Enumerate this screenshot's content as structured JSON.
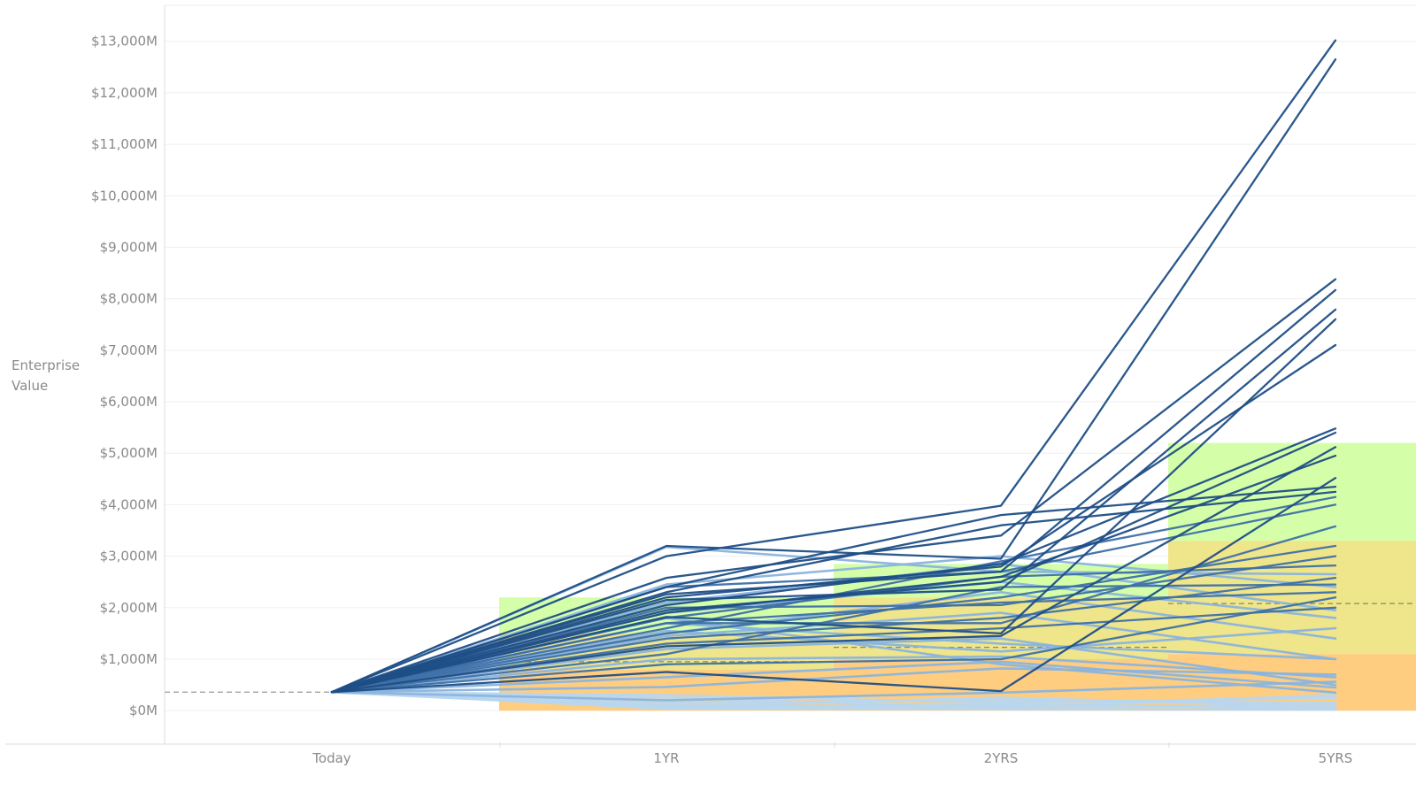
{
  "chart_data": {
    "type": "line",
    "ylabel": "Enterprise Value",
    "y_ticks": [
      "$0M",
      "$1,000M",
      "$2,000M",
      "$3,000M",
      "$4,000M",
      "$5,000M",
      "$6,000M",
      "$7,000M",
      "$8,000M",
      "$9,000M",
      "$10,000M",
      "$11,000M",
      "$12,000M",
      "$13,000M"
    ],
    "ylim": [
      -650,
      13700
    ],
    "categories": [
      "Today",
      "1YR",
      "2YRS",
      "5YRS"
    ],
    "baseline_value": 360,
    "grid": true,
    "colors": {
      "green_band": "#ccff99",
      "yellow_band": "#ece077",
      "orange_band": "#ffc46a",
      "dark_line": "#1f4e86",
      "mid_line": "#3e70a7",
      "light_line": "#8ab4de",
      "pale_line": "#b8d6ef",
      "ref_line": "#9a9a9a"
    },
    "bands": [
      {
        "category": "1YR",
        "green": [
          1500,
          2200
        ],
        "yellow": [
          800,
          1500
        ],
        "orange": [
          0,
          800
        ],
        "reference": 950
      },
      {
        "category": "2YRS",
        "green": [
          2200,
          2850
        ],
        "yellow": [
          1000,
          2200
        ],
        "orange": [
          0,
          1000
        ],
        "reference": 1230
      },
      {
        "category": "5YRS",
        "green": [
          3300,
          5200
        ],
        "yellow": [
          1100,
          3300
        ],
        "orange": [
          0,
          1100
        ],
        "reference": 2080
      }
    ],
    "series": [
      {
        "tone": "dark",
        "values": [
          360,
          3000,
          3980,
          13020
        ]
      },
      {
        "tone": "dark",
        "values": [
          360,
          3200,
          2950,
          12650
        ]
      },
      {
        "tone": "dark",
        "values": [
          360,
          2580,
          3400,
          8380
        ]
      },
      {
        "tone": "dark",
        "values": [
          360,
          2260,
          2700,
          8170
        ]
      },
      {
        "tone": "dark",
        "values": [
          360,
          2150,
          2350,
          7790
        ]
      },
      {
        "tone": "dark",
        "values": [
          360,
          1820,
          1500,
          7600
        ]
      },
      {
        "tone": "dark",
        "values": [
          360,
          2200,
          2800,
          7100
        ]
      },
      {
        "tone": "dark",
        "values": [
          360,
          2050,
          2850,
          5480
        ]
      },
      {
        "tone": "dark",
        "values": [
          360,
          1950,
          2500,
          5400
        ]
      },
      {
        "tone": "dark",
        "values": [
          360,
          1250,
          1450,
          5120
        ]
      },
      {
        "tone": "dark",
        "values": [
          360,
          1900,
          2600,
          4950
        ]
      },
      {
        "tone": "dark",
        "values": [
          360,
          2400,
          3800,
          4350
        ]
      },
      {
        "tone": "dark",
        "values": [
          360,
          2300,
          3600,
          4250
        ]
      },
      {
        "tone": "dark",
        "values": [
          360,
          750,
          380,
          4520
        ]
      },
      {
        "tone": "mid",
        "values": [
          360,
          1600,
          2900,
          4150
        ]
      },
      {
        "tone": "mid",
        "values": [
          360,
          2400,
          2700,
          4000
        ]
      },
      {
        "tone": "mid",
        "values": [
          360,
          1700,
          1700,
          3580
        ]
      },
      {
        "tone": "mid",
        "values": [
          360,
          1500,
          2200,
          3200
        ]
      },
      {
        "tone": "mid",
        "values": [
          360,
          2000,
          2050,
          3000
        ]
      },
      {
        "tone": "mid",
        "values": [
          360,
          1800,
          2600,
          2820
        ]
      },
      {
        "tone": "mid",
        "values": [
          360,
          1400,
          1800,
          2580
        ]
      },
      {
        "tone": "mid",
        "values": [
          360,
          1100,
          2400,
          2450
        ]
      },
      {
        "tone": "mid",
        "values": [
          360,
          1700,
          2100,
          2300
        ]
      },
      {
        "tone": "mid",
        "values": [
          360,
          900,
          1000,
          2200
        ]
      },
      {
        "tone": "mid",
        "values": [
          360,
          1300,
          1600,
          2000
        ]
      },
      {
        "tone": "light",
        "values": [
          360,
          3180,
          2700,
          2650
        ]
      },
      {
        "tone": "light",
        "values": [
          360,
          2450,
          3000,
          2400
        ]
      },
      {
        "tone": "light",
        "values": [
          360,
          2100,
          2850,
          1950
        ]
      },
      {
        "tone": "light",
        "values": [
          360,
          1900,
          2500,
          1800
        ]
      },
      {
        "tone": "light",
        "values": [
          360,
          1550,
          1150,
          1600
        ]
      },
      {
        "tone": "light",
        "values": [
          360,
          1500,
          2300,
          1400
        ]
      },
      {
        "tone": "light",
        "values": [
          360,
          1700,
          1300,
          1000
        ]
      },
      {
        "tone": "light",
        "values": [
          360,
          1450,
          1900,
          1000
        ]
      },
      {
        "tone": "light",
        "values": [
          360,
          1000,
          1050,
          650
        ]
      },
      {
        "tone": "light",
        "values": [
          360,
          1200,
          1400,
          500
        ]
      },
      {
        "tone": "light",
        "values": [
          360,
          650,
          950,
          450
        ]
      },
      {
        "tone": "light",
        "values": [
          360,
          460,
          820,
          700
        ]
      },
      {
        "tone": "light",
        "values": [
          360,
          1800,
          900,
          350
        ]
      },
      {
        "tone": "light",
        "values": [
          360,
          200,
          350,
          560
        ]
      },
      {
        "tone": "pale",
        "values": [
          360,
          300,
          150,
          250
        ]
      },
      {
        "tone": "pale",
        "values": [
          360,
          100,
          80,
          100
        ]
      },
      {
        "tone": "pale",
        "values": [
          360,
          60,
          120,
          50
        ]
      },
      {
        "tone": "pale",
        "values": [
          360,
          150,
          200,
          150
        ]
      },
      {
        "tone": "pale",
        "values": [
          360,
          40,
          30,
          20
        ]
      },
      {
        "tone": "pale",
        "values": [
          360,
          250,
          60,
          300
        ]
      },
      {
        "tone": "pale",
        "values": [
          360,
          80,
          250,
          80
        ]
      }
    ]
  }
}
